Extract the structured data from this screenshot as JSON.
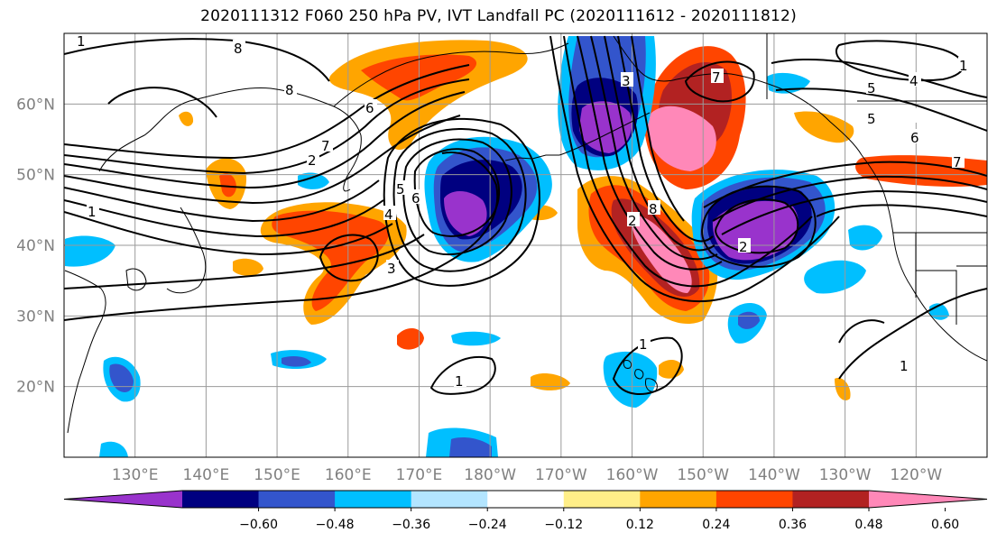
{
  "title": "2020111312 F060 250 hPa PV, IVT Landfall PC (2020111612 - 2020111812)",
  "map": {
    "lon_range": [
      120,
      250
    ],
    "lat_range": [
      10,
      70
    ],
    "lon_ticks": [
      {
        "lon": 130,
        "label": "130°E"
      },
      {
        "lon": 140,
        "label": "140°E"
      },
      {
        "lon": 150,
        "label": "150°E"
      },
      {
        "lon": 160,
        "label": "160°E"
      },
      {
        "lon": 170,
        "label": "170°E"
      },
      {
        "lon": 180,
        "label": "180°W"
      },
      {
        "lon": 190,
        "label": "170°W"
      },
      {
        "lon": 200,
        "label": "160°W"
      },
      {
        "lon": 210,
        "label": "150°W"
      },
      {
        "lon": 220,
        "label": "140°W"
      },
      {
        "lon": 230,
        "label": "130°W"
      },
      {
        "lon": 240,
        "label": "120°W"
      }
    ],
    "lat_ticks": [
      {
        "lat": 20,
        "label": "20°N"
      },
      {
        "lat": 30,
        "label": "30°N"
      },
      {
        "lat": 40,
        "label": "40°N"
      },
      {
        "lat": 50,
        "label": "50°N"
      },
      {
        "lat": 60,
        "label": "60°N"
      }
    ],
    "grid": true
  },
  "colorbar": {
    "levels": [
      -0.6,
      -0.48,
      -0.36,
      -0.24,
      -0.12,
      0.12,
      0.24,
      0.36,
      0.48,
      0.6
    ],
    "tick_labels": [
      "−0.60",
      "−0.48",
      "−0.36",
      "−0.24",
      "−0.12",
      "0.12",
      "0.24",
      "0.36",
      "0.48",
      "0.60"
    ],
    "colors": [
      "#9933cc",
      "#000080",
      "#3355cc",
      "#00bfff",
      "#b3e5ff",
      "#ffffff",
      "#ffee88",
      "#ffa500",
      "#ff4500",
      "#b22222",
      "#ff88b8"
    ],
    "extend": "both"
  },
  "contour_labels": [
    "1",
    "1",
    "1",
    "2",
    "3",
    "4",
    "5",
    "6",
    "7",
    "8",
    "1",
    "5",
    "6",
    "7",
    "8",
    "2",
    "1",
    "1",
    "3",
    "4",
    "5",
    "6",
    "7",
    "2",
    "8"
  ]
}
